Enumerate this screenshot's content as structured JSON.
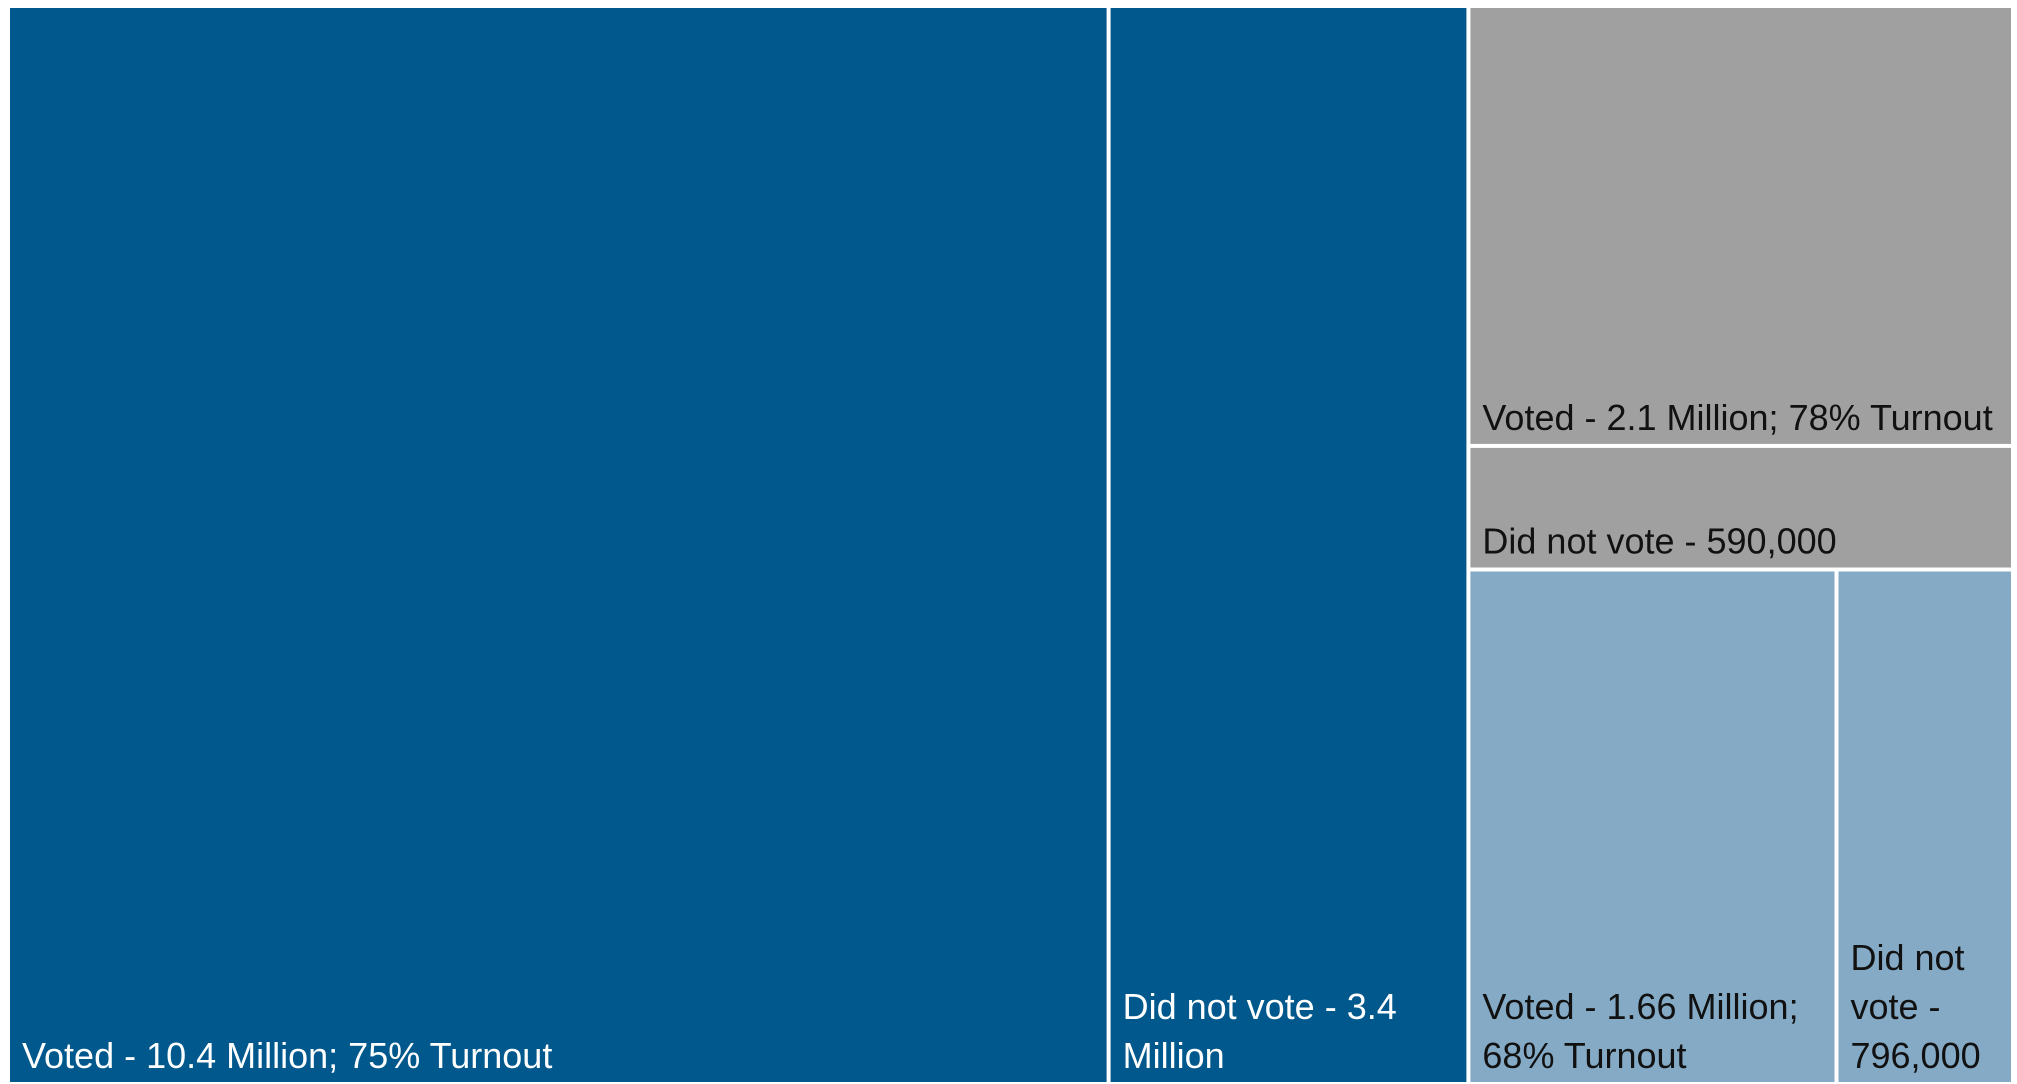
{
  "chart_data": {
    "type": "treemap",
    "colors": {
      "group_a": "#00588C",
      "group_b": "#A0A0A0",
      "group_c": "#84AAC6",
      "border": "#FFFFFF",
      "text_light": "#FFFFFF",
      "text_dark": "#111111"
    },
    "groups": [
      {
        "color_key": "group_a",
        "items": [
          {
            "label": "Voted - 10.4 Million; 75% Turnout",
            "value": 10400000,
            "text_color_key": "text_light"
          },
          {
            "label": "Did not vote - 3.4 Million",
            "value": 3400000,
            "text_color_key": "text_light"
          }
        ]
      },
      {
        "color_key": "group_b",
        "items": [
          {
            "label": "Voted - 2.1 Million; 78% Turnout",
            "value": 2100000,
            "text_color_key": "text_dark"
          },
          {
            "label": "Did not vote - 590,000",
            "value": 590000,
            "text_color_key": "text_dark"
          }
        ]
      },
      {
        "color_key": "group_c",
        "items": [
          {
            "label": "Voted - 1.66 Million; 68% Turnout",
            "value": 1660000,
            "text_color_key": "text_dark"
          },
          {
            "label": "Did not vote - 796,000",
            "value": 796000,
            "text_color_key": "text_dark"
          }
        ]
      }
    ]
  }
}
